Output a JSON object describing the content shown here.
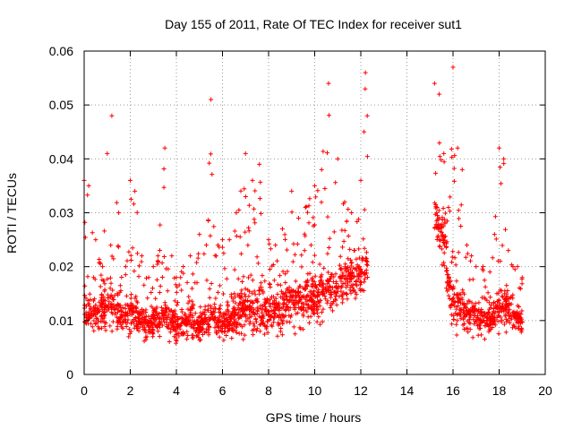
{
  "chart_data": {
    "type": "scatter",
    "title": "Day 155 of 2011, Rate Of TEC Index for receiver sut1",
    "xlabel": "GPS time / hours",
    "ylabel": "ROTI / TECUs",
    "xlim": [
      0,
      20
    ],
    "ylim": [
      0,
      0.06
    ],
    "grid": true,
    "marker": "+",
    "x_ticks": [
      0,
      2,
      4,
      6,
      8,
      10,
      12,
      14,
      16,
      18,
      20
    ],
    "x_tick_labels": [
      "0",
      "2",
      "4",
      "6",
      "8",
      "10",
      "12",
      "14",
      "16",
      "18",
      "20"
    ],
    "y_ticks": [
      0,
      0.01,
      0.02,
      0.03,
      0.04,
      0.05,
      0.06
    ],
    "y_tick_labels": [
      "0",
      "0.01",
      "0.02",
      "0.03",
      "0.04",
      "0.05",
      "0.06"
    ],
    "series": [
      {
        "name": "ROTI",
        "color": "#ff0000",
        "observed_envelope": {
          "x": [
            0.0,
            0.2,
            0.5,
            0.8,
            1.0,
            1.2,
            1.5,
            1.8,
            2.0,
            2.2,
            2.5,
            2.8,
            3.0,
            3.2,
            3.5,
            3.8,
            4.0,
            4.3,
            4.6,
            5.0,
            5.3,
            5.5,
            5.8,
            6.0,
            6.3,
            6.6,
            7.0,
            7.3,
            7.6,
            8.0,
            8.3,
            8.6,
            9.0,
            9.3,
            9.6,
            10.0,
            10.3,
            10.6,
            11.0,
            11.3,
            11.6,
            12.0,
            12.2,
            15.2,
            15.4,
            15.6,
            15.8,
            16.0,
            16.2,
            16.4,
            16.6,
            16.8,
            17.0,
            17.3,
            17.6,
            17.8,
            18.0,
            18.2,
            18.4,
            18.6,
            18.8,
            19.0
          ],
          "y_max": [
            0.036,
            0.035,
            0.025,
            0.02,
            0.041,
            0.048,
            0.03,
            0.02,
            0.036,
            0.034,
            0.022,
            0.018,
            0.02,
            0.022,
            0.042,
            0.022,
            0.018,
            0.02,
            0.022,
            0.026,
            0.024,
            0.051,
            0.024,
            0.025,
            0.025,
            0.03,
            0.041,
            0.036,
            0.039,
            0.025,
            0.024,
            0.027,
            0.034,
            0.029,
            0.031,
            0.035,
            0.038,
            0.054,
            0.04,
            0.032,
            0.03,
            0.036,
            0.056,
            0.054,
            0.052,
            0.041,
            0.031,
            0.057,
            0.042,
            0.038,
            0.024,
            0.022,
            0.02,
            0.02,
            0.019,
            0.026,
            0.042,
            0.04,
            0.023,
            0.02,
            0.02,
            0.018
          ],
          "y_typical": [
            0.012,
            0.011,
            0.011,
            0.012,
            0.012,
            0.013,
            0.011,
            0.011,
            0.012,
            0.011,
            0.01,
            0.009,
            0.01,
            0.01,
            0.011,
            0.01,
            0.009,
            0.009,
            0.01,
            0.009,
            0.01,
            0.011,
            0.01,
            0.009,
            0.01,
            0.011,
            0.012,
            0.012,
            0.012,
            0.011,
            0.012,
            0.013,
            0.013,
            0.013,
            0.014,
            0.014,
            0.015,
            0.016,
            0.016,
            0.017,
            0.018,
            0.018,
            0.02,
            0.03,
            0.028,
            0.025,
            0.018,
            0.014,
            0.013,
            0.012,
            0.011,
            0.011,
            0.011,
            0.01,
            0.01,
            0.011,
            0.012,
            0.012,
            0.012,
            0.011,
            0.01,
            0.01
          ],
          "y_min": [
            0.006,
            0.005,
            0.005,
            0.006,
            0.005,
            0.005,
            0.005,
            0.005,
            0.005,
            0.005,
            0.005,
            0.004,
            0.004,
            0.004,
            0.005,
            0.004,
            0.004,
            0.004,
            0.004,
            0.004,
            0.004,
            0.005,
            0.004,
            0.004,
            0.005,
            0.004,
            0.005,
            0.005,
            0.004,
            0.005,
            0.005,
            0.004,
            0.005,
            0.005,
            0.006,
            0.006,
            0.007,
            0.008,
            0.009,
            0.01,
            0.011,
            0.012,
            0.014,
            0.022,
            0.02,
            0.012,
            0.007,
            0.004,
            0.005,
            0.006,
            0.005,
            0.005,
            0.005,
            0.005,
            0.005,
            0.005,
            0.005,
            0.005,
            0.005,
            0.005,
            0.005,
            0.004
          ]
        },
        "data_gap_hours": [
          12.3,
          15.2
        ],
        "end_hours": 19.0
      }
    ]
  }
}
